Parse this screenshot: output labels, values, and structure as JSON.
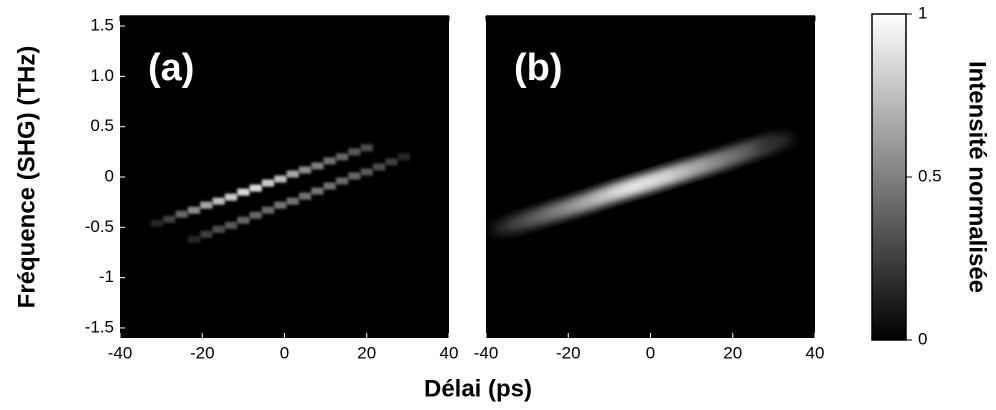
{
  "xlabel": "Délai (ps)",
  "ylabel": "Fréquence (SHG)  (THz)",
  "colorbar": {
    "label": "Intensité normalisée",
    "clim": [
      0,
      1
    ],
    "ticks": [
      0,
      0.5,
      1
    ]
  },
  "chart_data": [
    {
      "type": "heatmap",
      "title": "(a)",
      "x": [
        -31,
        -28,
        -25,
        -22,
        -19,
        -16,
        -13,
        -10,
        -7,
        -4,
        -1,
        2,
        5,
        8,
        11,
        14,
        17,
        20,
        -22,
        -19,
        -16,
        -13,
        -10,
        -7,
        -4,
        -1,
        2,
        5,
        8,
        11,
        14,
        17,
        20,
        23,
        26,
        29
      ],
      "y": [
        -0.46,
        -0.42,
        -0.37,
        -0.33,
        -0.28,
        -0.24,
        -0.2,
        -0.15,
        -0.11,
        -0.06,
        -0.02,
        0.03,
        0.07,
        0.11,
        0.16,
        0.2,
        0.25,
        0.29,
        -0.62,
        -0.57,
        -0.52,
        -0.48,
        -0.43,
        -0.38,
        -0.33,
        -0.28,
        -0.24,
        -0.19,
        -0.14,
        -0.09,
        -0.04,
        0.01,
        0.05,
        0.1,
        0.15,
        0.2
      ],
      "values": [
        0.15,
        0.25,
        0.4,
        0.55,
        0.65,
        0.75,
        0.8,
        0.85,
        0.85,
        0.8,
        0.75,
        0.65,
        0.55,
        0.5,
        0.45,
        0.4,
        0.35,
        0.3,
        0.15,
        0.25,
        0.3,
        0.35,
        0.4,
        0.4,
        0.42,
        0.45,
        0.45,
        0.45,
        0.45,
        0.45,
        0.42,
        0.4,
        0.35,
        0.3,
        0.25,
        0.15
      ],
      "xlim": [
        -40,
        40
      ],
      "xticks": [
        -40,
        -20,
        0,
        20,
        40
      ],
      "ylim": [
        -1.6,
        1.6
      ],
      "yticks": [
        -1.5,
        -1,
        -0.5,
        0,
        0.5,
        {
          "value": 1,
          "label": "1.0"
        },
        1.5
      ]
    },
    {
      "type": "heatmap-smooth",
      "title": "(b)",
      "x": [
        -34,
        -30,
        -26,
        -22,
        -18,
        -14,
        -10,
        -6,
        -2,
        2,
        6,
        10,
        14,
        18,
        22,
        26,
        30
      ],
      "y": [
        -0.48,
        -0.43,
        -0.38,
        -0.33,
        -0.28,
        -0.23,
        -0.17,
        -0.12,
        -0.07,
        -0.02,
        0.03,
        0.08,
        0.13,
        0.18,
        0.24,
        0.29,
        0.34
      ],
      "values": [
        0.2,
        0.3,
        0.4,
        0.5,
        0.6,
        0.7,
        0.8,
        0.9,
        0.95,
        0.9,
        0.85,
        0.75,
        0.65,
        0.55,
        0.45,
        0.35,
        0.2
      ],
      "xlim": [
        -40,
        40
      ],
      "xticks": [
        -40,
        -20,
        0,
        20,
        40
      ],
      "ylim": [
        -1.6,
        1.6
      ]
    }
  ]
}
